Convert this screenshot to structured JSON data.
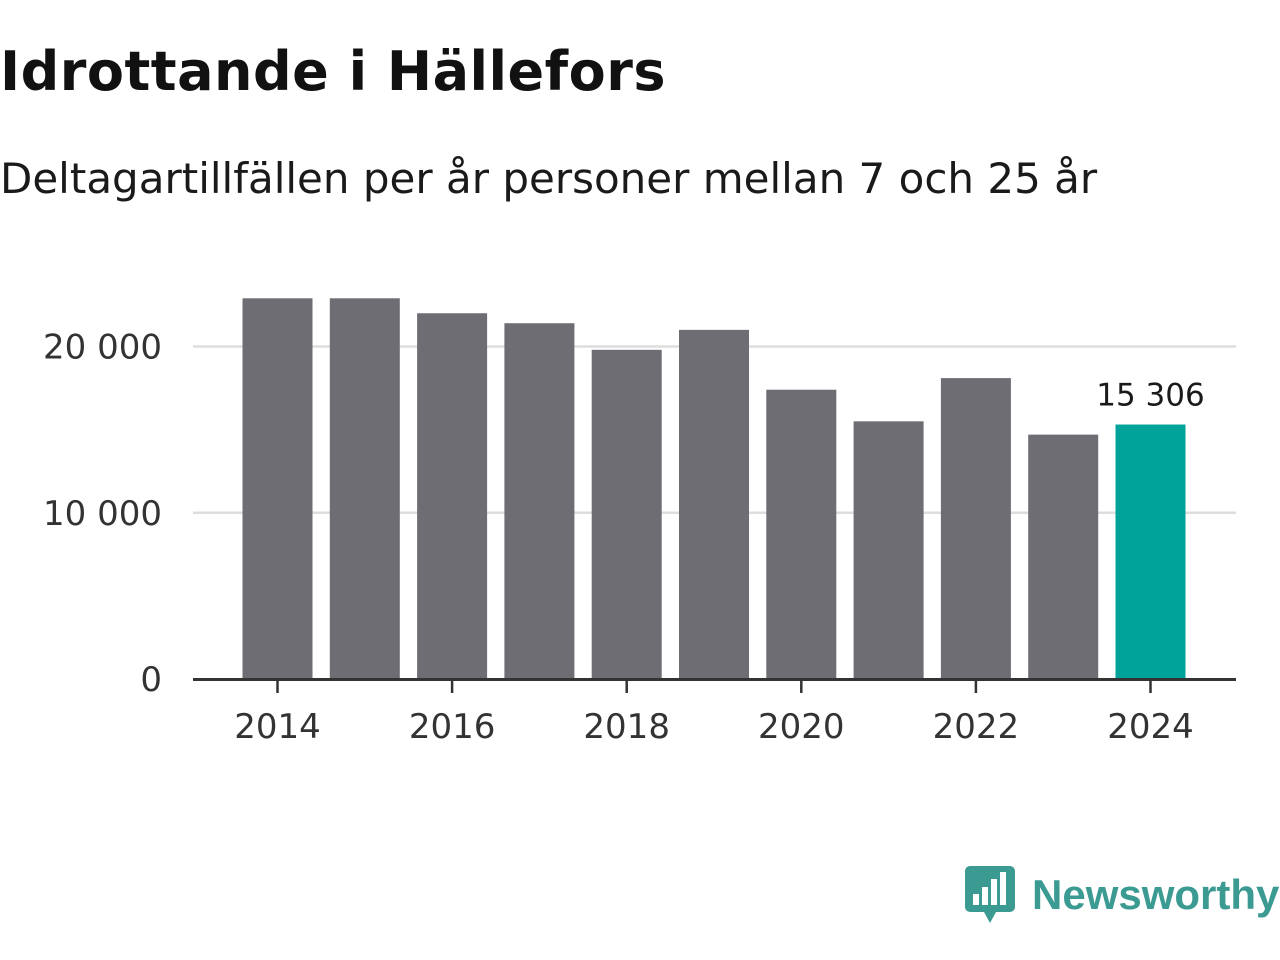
{
  "title": "Idrottande i Hällefors",
  "subtitle": "Deltagartillfällen per år personer mellan 7 och 25 år",
  "chart_data": {
    "type": "bar",
    "title": "Idrottande i Hällefors",
    "subtitle": "Deltagartillfällen per år personer mellan 7 och 25 år",
    "categories": [
      2014,
      2015,
      2016,
      2017,
      2018,
      2019,
      2020,
      2021,
      2022,
      2023,
      2024
    ],
    "values": [
      22900,
      22900,
      22000,
      21400,
      19800,
      21000,
      17400,
      15500,
      18100,
      14700,
      15306
    ],
    "x_ticks": [
      "2014",
      "2016",
      "2018",
      "2020",
      "2022",
      "2024"
    ],
    "y_ticks": [
      {
        "value": 0,
        "label": "0"
      },
      {
        "value": 10000,
        "label": "10 000"
      },
      {
        "value": 20000,
        "label": "20 000"
      }
    ],
    "ylim": [
      0,
      24000
    ],
    "xlabel": "",
    "ylabel": "",
    "grid": true,
    "highlight": {
      "category": 2024,
      "label": "15 306"
    },
    "colors": {
      "bar": "#6e6d73",
      "highlight": "#00a39a",
      "grid": "#dddddd",
      "axis": "#333333"
    }
  },
  "brand": {
    "name": "Newsworthy",
    "color": "#3b9a91",
    "icon": "newsworthy-logo-icon"
  }
}
